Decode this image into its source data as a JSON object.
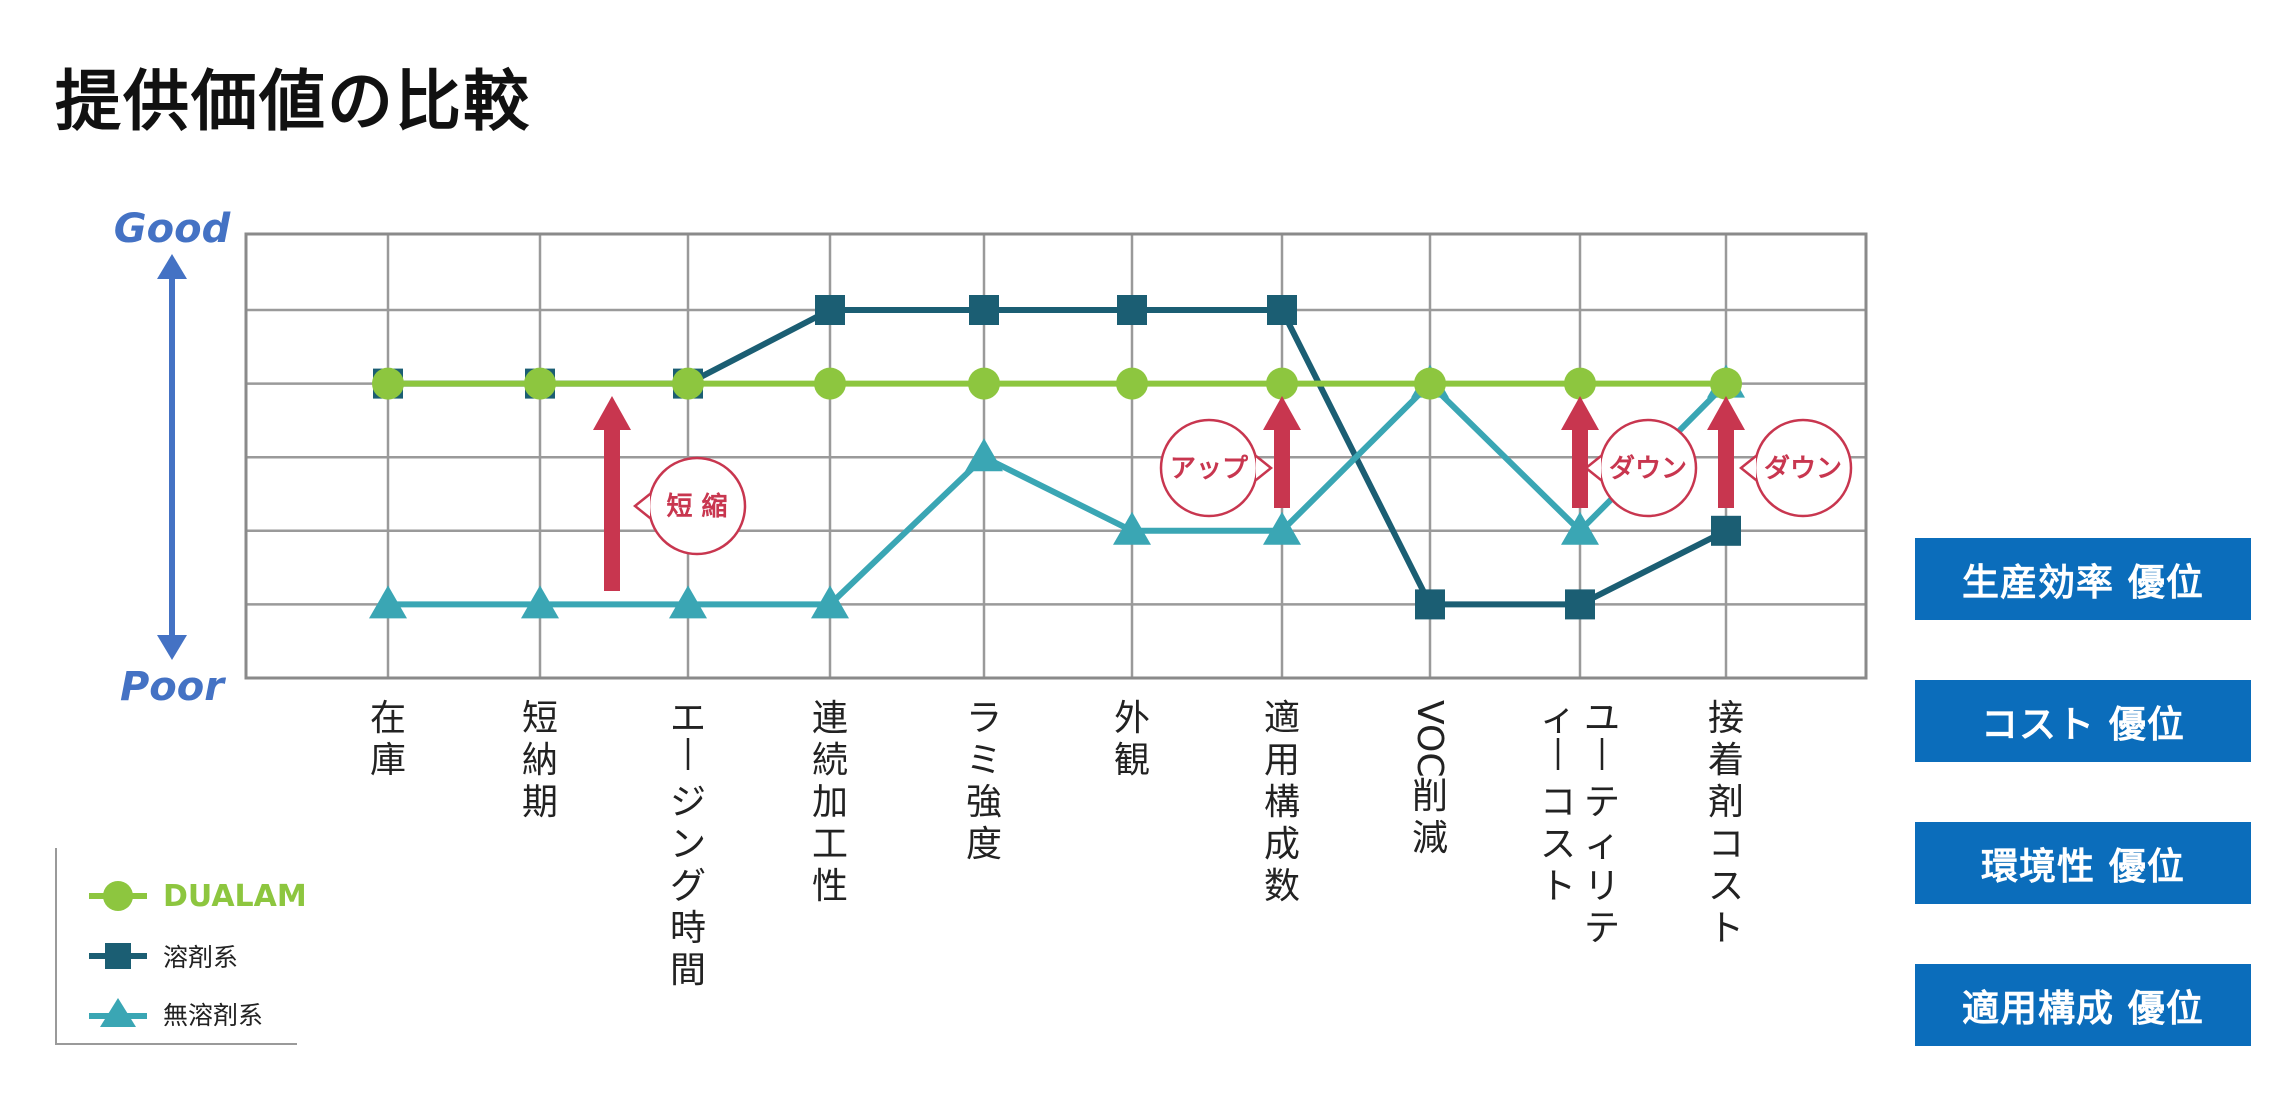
{
  "title": "提供価値の比較",
  "chart_data": {
    "type": "line",
    "axis_top": "Good",
    "axis_bottom": "Poor",
    "categories": [
      "在庫",
      "短納期",
      "エージング時間",
      "連続加工性",
      "ラミ強度",
      "外観",
      "適用構成数",
      "VOC削減",
      "ユーティリティーコスト",
      "接着剤コスト"
    ],
    "ylim": [
      0,
      6
    ],
    "grid": true,
    "series": [
      {
        "name": "溶剤系",
        "marker": "square",
        "color": "#1b5e73",
        "values": [
          4,
          4,
          4,
          5,
          5,
          5,
          5,
          1,
          1,
          2
        ]
      },
      {
        "name": "無溶剤系",
        "marker": "triangle",
        "color": "#3aa6b4",
        "values": [
          1,
          1,
          1,
          1,
          3,
          2,
          2,
          4,
          2,
          4
        ]
      },
      {
        "name": "DUALAM",
        "marker": "circle",
        "color": "#8dc63f",
        "values": [
          4,
          4,
          4,
          4,
          4,
          4,
          4,
          4,
          4,
          4
        ]
      }
    ],
    "annotations": [
      {
        "text": "短 縮",
        "category": "短納期"
      },
      {
        "text": "アップ",
        "category": "適用構成数"
      },
      {
        "text": "ダウン",
        "category": "ユーティリティーコスト"
      },
      {
        "text": "ダウン",
        "category": "接着剤コスト"
      }
    ]
  },
  "legend": [
    {
      "label": "DUALAM",
      "marker": "circle",
      "color": "#8dc63f"
    },
    {
      "label": "溶剤系",
      "marker": "square",
      "color": "#1b5e73"
    },
    {
      "label": "無溶剤系",
      "marker": "triangle",
      "color": "#3aa6b4"
    }
  ],
  "advantages": [
    "生産効率 優位",
    "コスト 優位",
    "環境性 優位",
    "適用構成 優位"
  ],
  "colors": {
    "accent_blue": "#0b6dbb",
    "arrow_red": "#c8364f",
    "axis_blue": "#4472c4"
  }
}
